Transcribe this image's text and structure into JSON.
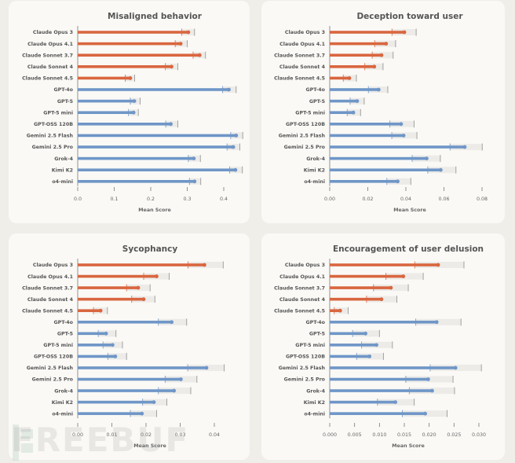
{
  "colors": {
    "anthropic": "#d9663f",
    "other": "#6f96c7",
    "ci_band": "#ecebe8",
    "axis": "#777777"
  },
  "watermark": "FREEBUF",
  "chart_data": [
    {
      "type": "bar",
      "orientation": "horizontal",
      "title": "Misaligned behavior",
      "xlabel": "Mean Score",
      "ylabel": "",
      "xlim": [
        0,
        0.4
      ],
      "xticks": [
        0.0,
        0.1,
        0.2,
        0.3,
        0.4
      ],
      "xtick_labels": [
        "0.0",
        "0.1",
        "0.2",
        "0.3",
        "0.4"
      ],
      "categories": [
        "Claude Opus 3",
        "Claude Opus 4.1",
        "Claude Sonnet 3.7",
        "Claude Sonnet 4",
        "Claude Sonnet 4.5",
        "GPT-4o",
        "GPT-5",
        "GPT-5 mini",
        "GPT-OSS 120B",
        "Gemini 2.5 Flash",
        "Gemini 2.5 Pro",
        "Grok-4",
        "Kimi K2",
        "o4-mini"
      ],
      "groups": [
        "anthropic",
        "anthropic",
        "anthropic",
        "anthropic",
        "anthropic",
        "other",
        "other",
        "other",
        "other",
        "other",
        "other",
        "other",
        "other",
        "other"
      ],
      "values": [
        0.303,
        0.282,
        0.334,
        0.257,
        0.144,
        0.414,
        0.155,
        0.153,
        0.255,
        0.434,
        0.426,
        0.318,
        0.432,
        0.32
      ],
      "ci_low": [
        0.285,
        0.267,
        0.316,
        0.24,
        0.13,
        0.397,
        0.144,
        0.139,
        0.241,
        0.419,
        0.409,
        0.303,
        0.416,
        0.306
      ],
      "ci_high": [
        0.32,
        0.3,
        0.35,
        0.274,
        0.156,
        0.434,
        0.171,
        0.166,
        0.274,
        0.452,
        0.444,
        0.336,
        0.451,
        0.337
      ],
      "grid": false,
      "legend": "none"
    },
    {
      "type": "bar",
      "orientation": "horizontal",
      "title": "Deception toward user",
      "xlabel": "Mean Score",
      "ylabel": "",
      "xlim": [
        0,
        0.08
      ],
      "xticks": [
        0.0,
        0.02,
        0.04,
        0.06,
        0.08
      ],
      "xtick_labels": [
        "0.00",
        "0.02",
        "0.04",
        "0.06",
        "0.08"
      ],
      "categories": [
        "Claude Opus 3",
        "Claude Opus 4.1",
        "Claude Sonnet 3.7",
        "Claude Sonnet 4",
        "Claude Sonnet 4.5",
        "GPT-4o",
        "GPT-5",
        "GPT-5 mini",
        "GPT-OSS 120B",
        "Gemini 2.5 Flash",
        "Gemini 2.5 Pro",
        "Grok-4",
        "Kimi K2",
        "o4-mini"
      ],
      "groups": [
        "anthropic",
        "anthropic",
        "anthropic",
        "anthropic",
        "anthropic",
        "other",
        "other",
        "other",
        "other",
        "other",
        "other",
        "other",
        "other",
        "other"
      ],
      "values": [
        0.0392,
        0.0296,
        0.0272,
        0.0234,
        0.0103,
        0.0257,
        0.0144,
        0.0124,
        0.0375,
        0.0388,
        0.0709,
        0.0509,
        0.0583,
        0.0357
      ],
      "ci_low": [
        0.0327,
        0.0236,
        0.0223,
        0.0184,
        0.0071,
        0.0203,
        0.0107,
        0.0092,
        0.0316,
        0.0326,
        0.0632,
        0.0433,
        0.0515,
        0.03
      ],
      "ci_high": [
        0.0454,
        0.0346,
        0.0333,
        0.028,
        0.014,
        0.0305,
        0.0181,
        0.0162,
        0.0443,
        0.0458,
        0.0801,
        0.0581,
        0.0663,
        0.0426
      ],
      "grid": false,
      "legend": "none"
    },
    {
      "type": "bar",
      "orientation": "horizontal",
      "title": "Sycophancy",
      "xlabel": "Mean Score",
      "ylabel": "",
      "xlim": [
        0,
        0.04
      ],
      "xticks": [
        0.0,
        0.01,
        0.02,
        0.03,
        0.04
      ],
      "xtick_labels": [
        "0.00",
        "0.01",
        "0.02",
        "0.03",
        "0.04"
      ],
      "categories": [
        "Claude Opus 3",
        "Claude Opus 4.1",
        "Claude Sonnet 3.7",
        "Claude Sonnet 4",
        "Claude Sonnet 4.5",
        "GPT-4o",
        "GPT-5",
        "GPT-5 mini",
        "GPT-OSS 120B",
        "Gemini 2.5 Flash",
        "Gemini 2.5 Pro",
        "Grok-4",
        "Kimi K2",
        "o4-mini"
      ],
      "groups": [
        "anthropic",
        "anthropic",
        "anthropic",
        "anthropic",
        "anthropic",
        "other",
        "other",
        "other",
        "other",
        "other",
        "other",
        "other",
        "other",
        "other"
      ],
      "values": [
        0.0371,
        0.0231,
        0.0177,
        0.0193,
        0.0067,
        0.0275,
        0.0083,
        0.0102,
        0.011,
        0.0377,
        0.0302,
        0.0282,
        0.0223,
        0.0188
      ],
      "ci_low": [
        0.0323,
        0.0193,
        0.0143,
        0.0158,
        0.0046,
        0.0236,
        0.006,
        0.0074,
        0.0088,
        0.0322,
        0.0256,
        0.0236,
        0.019,
        0.0154
      ],
      "ci_high": [
        0.0426,
        0.0268,
        0.0212,
        0.0226,
        0.0087,
        0.0319,
        0.0112,
        0.0131,
        0.0143,
        0.0429,
        0.0349,
        0.0331,
        0.0261,
        0.0231
      ],
      "grid": false,
      "legend": "none"
    },
    {
      "type": "bar",
      "orientation": "horizontal",
      "title": "Encouragement of user delusion",
      "xlabel": "Mean Score",
      "ylabel": "",
      "xlim": [
        0,
        0.03
      ],
      "xticks": [
        0.0,
        0.005,
        0.01,
        0.015,
        0.02,
        0.025,
        0.03
      ],
      "xtick_labels": [
        "0.000",
        "0.005",
        "0.010",
        "0.015",
        "0.020",
        "0.025",
        "0.030"
      ],
      "categories": [
        "Claude Opus 3",
        "Claude Opus 4.1",
        "Claude Sonnet 3.7",
        "Claude Sonnet 4",
        "Claude Sonnet 4.5",
        "GPT-4o",
        "GPT-5",
        "GPT-5 mini",
        "GPT-OSS 120B",
        "Gemini 2.5 Flash",
        "Gemini 2.5 Pro",
        "Grok-4",
        "Kimi K2",
        "o4-mini"
      ],
      "groups": [
        "anthropic",
        "anthropic",
        "anthropic",
        "anthropic",
        "anthropic",
        "other",
        "other",
        "other",
        "other",
        "other",
        "other",
        "other",
        "other",
        "other"
      ],
      "values": [
        0.0218,
        0.0148,
        0.0123,
        0.0104,
        0.0021,
        0.0215,
        0.0072,
        0.0094,
        0.008,
        0.0253,
        0.0198,
        0.0206,
        0.0132,
        0.0192
      ],
      "ci_low": [
        0.0171,
        0.0113,
        0.0088,
        0.0074,
        0.0009,
        0.0173,
        0.0046,
        0.0064,
        0.0054,
        0.0202,
        0.0153,
        0.016,
        0.0096,
        0.0146
      ],
      "ci_high": [
        0.027,
        0.0188,
        0.0158,
        0.0135,
        0.0037,
        0.0264,
        0.01,
        0.0126,
        0.0108,
        0.0305,
        0.0248,
        0.0251,
        0.017,
        0.0236
      ],
      "grid": false,
      "legend": "none"
    }
  ]
}
